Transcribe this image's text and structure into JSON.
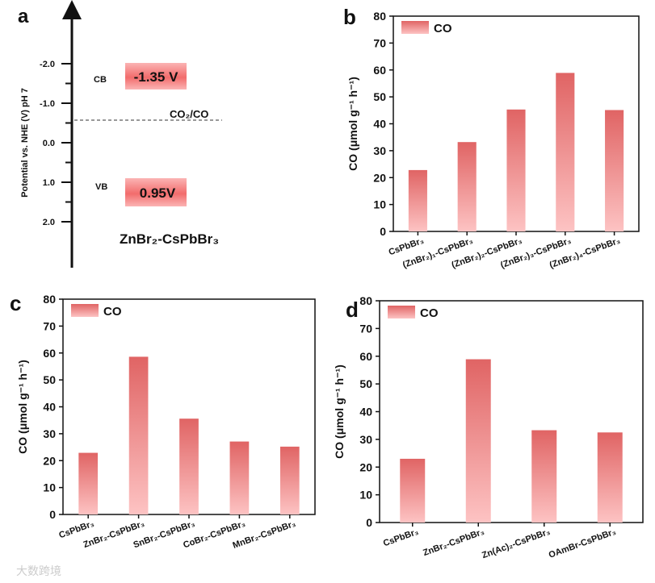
{
  "watermark": "大数跨境",
  "colors": {
    "bar_top": "#e06868",
    "bar_bottom": "#fcc0c0",
    "axis": "#111111",
    "box_top": "#f7a6a6",
    "box_mid": "#f06a6a"
  },
  "chart_data": [
    {
      "panel": "a",
      "type": "diagram",
      "ylabel": "Potential vs. NHE (V) pH 7",
      "ticks": [
        -2.0,
        -1.0,
        0.0,
        1.0,
        2.0
      ],
      "tick_labels": [
        "-2.0",
        "-1.0",
        "0.0",
        "1.0",
        "2.0"
      ],
      "cb_label": "CB",
      "cb_value": "-1.35 V",
      "vb_label": "VB",
      "vb_value": "0.95V",
      "redox_label": "CO₂/CO",
      "redox_potential": -0.53,
      "material": "ZnBr₂-CsPbBr₃"
    },
    {
      "panel": "b",
      "type": "bar",
      "title": "",
      "legend": "CO",
      "legend_position": "top-left",
      "ylabel": "CO (μmol g⁻¹ h⁻¹)",
      "ylim": [
        0,
        80
      ],
      "yticks": [
        0,
        10,
        20,
        30,
        40,
        50,
        60,
        70,
        80
      ],
      "categories": [
        "CsPbBr₃",
        "(ZnBr₂)₁-CsPbBr₃",
        "(ZnBr₂)₂-CsPbBr₃",
        "(ZnBr₂)₃-CsPbBr₃",
        "(ZnBr₂)₄-CsPbBr₃"
      ],
      "values": [
        22.8,
        33.2,
        45.3,
        58.9,
        45.1
      ]
    },
    {
      "panel": "c",
      "type": "bar",
      "legend": "CO",
      "legend_position": "top-left",
      "ylabel": "CO (μmol g⁻¹ h⁻¹)",
      "ylim": [
        0,
        80
      ],
      "yticks": [
        0,
        10,
        20,
        30,
        40,
        50,
        60,
        70,
        80
      ],
      "categories": [
        "CsPbBr₃",
        "ZnBr₂-CsPbBr₃",
        "SnBr₂-CsPbBr₃",
        "CoBr₂-CsPbBr₃",
        "MnBr₂-CsPbBr₃"
      ],
      "values": [
        22.9,
        58.6,
        35.6,
        27.1,
        25.2
      ]
    },
    {
      "panel": "d",
      "type": "bar",
      "legend": "CO",
      "legend_position": "top-left",
      "ylabel": "CO (μmol g⁻¹ h⁻¹)",
      "ylim": [
        0,
        80
      ],
      "yticks": [
        0,
        10,
        20,
        30,
        40,
        50,
        60,
        70,
        80
      ],
      "categories": [
        "CsPbBr₃",
        "ZnBr₂-CsPbBr₃",
        "Zn(Ac)₂-CsPbBr₃",
        "OAmBr-CsPbBr₃"
      ],
      "values": [
        23.0,
        58.9,
        33.3,
        32.5
      ]
    }
  ]
}
